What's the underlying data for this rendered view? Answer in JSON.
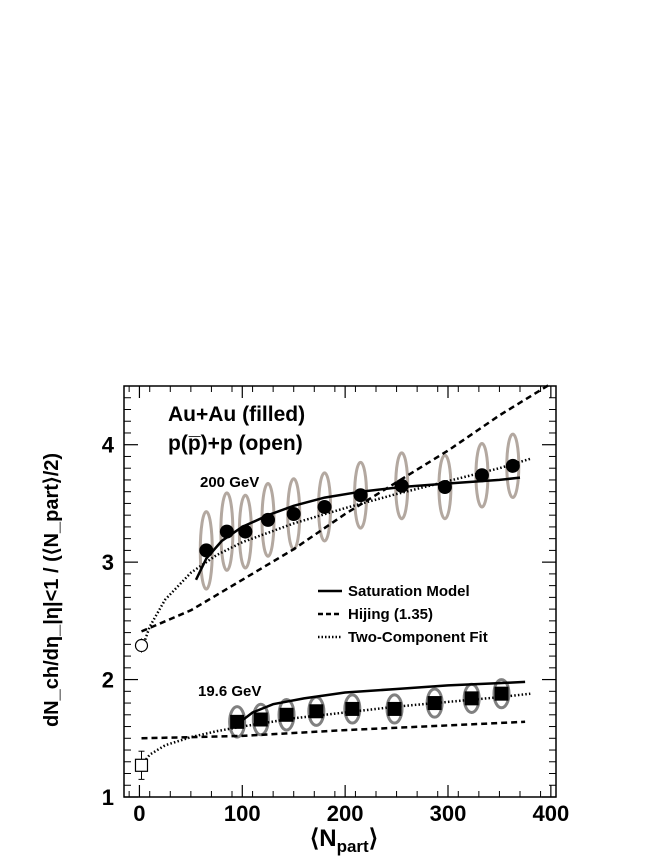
{
  "chart_data": {
    "type": "scatter",
    "xlabel_main": "⟨N",
    "xlabel_sub": "part",
    "xlabel_close": "⟩",
    "ylabel_text": "dN_ch/dη_|η|<1 / (⟨N_part⟩/2)",
    "xlim": [
      -15,
      405
    ],
    "ylim": [
      1.0,
      4.5
    ],
    "x_ticks": [
      "0",
      "100",
      "200",
      "300",
      "400"
    ],
    "y_ticks": [
      "1",
      "2",
      "3",
      "4"
    ],
    "annotations": {
      "line1": "Au+Au (filled)",
      "line2": "p(p̅)+p (open)",
      "label_200": "200 GeV",
      "label_196": "19.6 GeV"
    },
    "legend": {
      "saturation": "Saturation Model",
      "hijing": "Hijing (1.35)",
      "twocomp": "Two-Component Fit"
    },
    "colors": {
      "ellipse_200": "#b3a8a0",
      "ellipse_196": "#808080",
      "marker": "#000000"
    },
    "series": [
      {
        "name": "Au+Au (filled)",
        "energy": "200 GeV",
        "marker": "filled-circle",
        "x": [
          65,
          85,
          103,
          125,
          150,
          180,
          215,
          255,
          297,
          333,
          363
        ],
        "y": [
          3.1,
          3.26,
          3.26,
          3.36,
          3.41,
          3.47,
          3.57,
          3.65,
          3.64,
          3.74,
          3.82
        ],
        "ellipse_dy": [
          0.33,
          0.33,
          0.31,
          0.31,
          0.3,
          0.29,
          0.28,
          0.28,
          0.27,
          0.27,
          0.27
        ]
      },
      {
        "name": "Au+Au (filled)",
        "energy": "19.6 GeV",
        "marker": "filled-square",
        "x": [
          95,
          118,
          143,
          172,
          207,
          248,
          287,
          323,
          352
        ],
        "y": [
          1.64,
          1.66,
          1.7,
          1.73,
          1.75,
          1.75,
          1.8,
          1.84,
          1.88
        ],
        "ellipse_dy": [
          0.13,
          0.13,
          0.13,
          0.12,
          0.12,
          0.12,
          0.12,
          0.12,
          0.12
        ]
      },
      {
        "name": "p(p̅)+p (open)",
        "energy": "200 GeV",
        "marker": "open-circle",
        "x": [
          2
        ],
        "y": [
          2.29
        ],
        "err": [
          0.06
        ]
      },
      {
        "name": "p(p̅)+p (open)",
        "energy": "19.6 GeV",
        "marker": "open-square",
        "x": [
          2
        ],
        "y": [
          1.27
        ],
        "err": [
          0.12
        ]
      }
    ],
    "curves": [
      {
        "name": "Saturation Model",
        "style": "solid",
        "energy": "200 GeV",
        "x": [
          55,
          65,
          80,
          100,
          125,
          150,
          180,
          215,
          255,
          300,
          350,
          370
        ],
        "y": [
          2.85,
          3.03,
          3.18,
          3.3,
          3.4,
          3.48,
          3.55,
          3.6,
          3.64,
          3.67,
          3.7,
          3.72
        ]
      },
      {
        "name": "Saturation Model",
        "style": "solid",
        "energy": "19.6 GeV",
        "x": [
          95,
          110,
          130,
          160,
          200,
          250,
          300,
          350,
          375
        ],
        "y": [
          1.62,
          1.72,
          1.79,
          1.84,
          1.89,
          1.92,
          1.95,
          1.97,
          1.98
        ]
      },
      {
        "name": "Hijing (1.35)",
        "style": "dashed",
        "energy": "200 GeV",
        "x": [
          2,
          50,
          100,
          150,
          200,
          250,
          300,
          350,
          400
        ],
        "y": [
          2.41,
          2.59,
          2.85,
          3.11,
          3.41,
          3.68,
          3.95,
          4.25,
          4.52
        ]
      },
      {
        "name": "Hijing (1.35)",
        "style": "dashed",
        "energy": "19.6 GeV",
        "x": [
          2,
          100,
          200,
          300,
          375
        ],
        "y": [
          1.5,
          1.52,
          1.57,
          1.61,
          1.64
        ]
      },
      {
        "name": "Two-Component Fit",
        "style": "dotted",
        "energy": "200 GeV",
        "x": [
          2,
          10,
          25,
          50,
          75,
          100,
          150,
          200,
          250,
          300,
          350,
          380
        ],
        "y": [
          2.25,
          2.45,
          2.68,
          2.91,
          3.06,
          3.17,
          3.33,
          3.46,
          3.58,
          3.69,
          3.8,
          3.88
        ]
      },
      {
        "name": "Two-Component Fit",
        "style": "dotted",
        "energy": "19.6 GeV",
        "x": [
          2,
          10,
          25,
          50,
          75,
          100,
          150,
          200,
          250,
          300,
          350,
          380
        ],
        "y": [
          1.27,
          1.36,
          1.44,
          1.51,
          1.56,
          1.6,
          1.67,
          1.72,
          1.77,
          1.81,
          1.85,
          1.88
        ]
      }
    ]
  }
}
